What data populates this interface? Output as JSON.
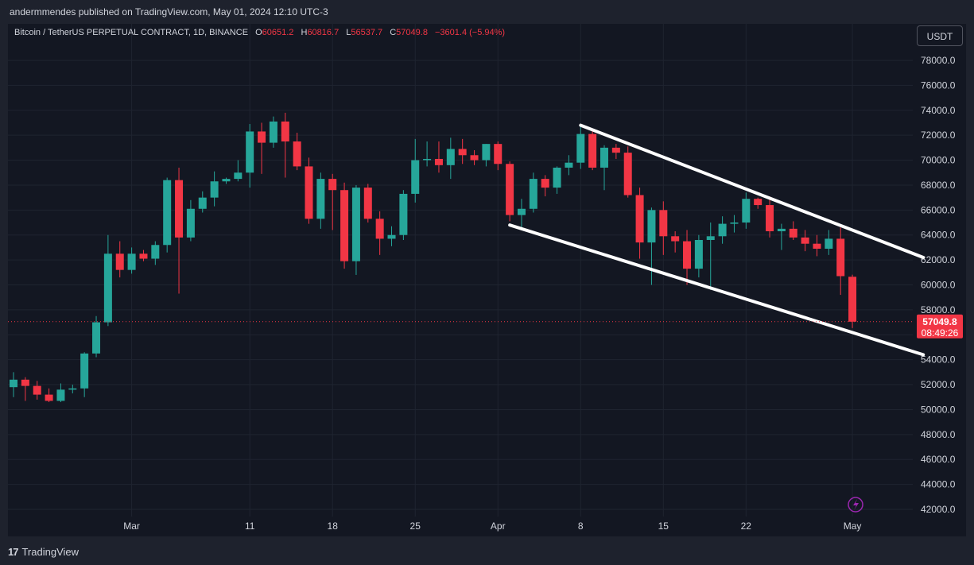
{
  "publish_line": "andermmendes published on TradingView.com, May 01, 2024 12:10 UTC-3",
  "legend": {
    "symbol": "Bitcoin / TetherUS PERPETUAL CONTRACT, 1D, BINANCE",
    "open_label": "O",
    "open": "60651.2",
    "high_label": "H",
    "high": "60816.7",
    "low_label": "L",
    "low": "56537.7",
    "close_label": "C",
    "close": "57049.8",
    "change": "−3601.4 (−5.94%)"
  },
  "currency_button": "USDT",
  "price_label": {
    "price": "57049.8",
    "countdown": "08:49:26"
  },
  "footer_brand": "TradingView",
  "icons": {
    "lightning": "lightning-icon",
    "logo": "tradingview-logo-icon"
  },
  "colors": {
    "up": "#26a69a",
    "down": "#f23645",
    "background": "#131722",
    "grid": "#1f2430",
    "trendline": "#ffffff"
  },
  "chart_data": {
    "type": "candlestick",
    "y_axis": {
      "ylim": [
        41000,
        80000
      ],
      "ticks": [
        "42000.0",
        "44000.0",
        "46000.0",
        "48000.0",
        "50000.0",
        "52000.0",
        "54000.0",
        "56000.0",
        "58000.0",
        "60000.0",
        "62000.0",
        "64000.0",
        "66000.0",
        "68000.0",
        "70000.0",
        "72000.0",
        "74000.0",
        "76000.0",
        "78000.0"
      ],
      "tick_values": [
        42000,
        44000,
        46000,
        48000,
        50000,
        52000,
        54000,
        56000,
        58000,
        60000,
        62000,
        64000,
        66000,
        68000,
        70000,
        72000,
        74000,
        76000,
        78000
      ]
    },
    "x_axis": {
      "first_date": "2024-02-20",
      "ticks": [
        {
          "label": "Mar",
          "date": "2024-03-01"
        },
        {
          "label": "11",
          "date": "2024-03-11"
        },
        {
          "label": "18",
          "date": "2024-03-18"
        },
        {
          "label": "25",
          "date": "2024-03-25"
        },
        {
          "label": "Apr",
          "date": "2024-04-01"
        },
        {
          "label": "8",
          "date": "2024-04-08"
        },
        {
          "label": "15",
          "date": "2024-04-15"
        },
        {
          "label": "22",
          "date": "2024-04-22"
        },
        {
          "label": "May",
          "date": "2024-05-01"
        }
      ]
    },
    "candles": [
      {
        "o": 51800,
        "h": 53000,
        "l": 51000,
        "c": 52400
      },
      {
        "o": 52400,
        "h": 52600,
        "l": 50700,
        "c": 51900
      },
      {
        "o": 51900,
        "h": 52300,
        "l": 50800,
        "c": 51200
      },
      {
        "o": 51200,
        "h": 51700,
        "l": 50600,
        "c": 50700
      },
      {
        "o": 50700,
        "h": 52100,
        "l": 50600,
        "c": 51600
      },
      {
        "o": 51600,
        "h": 52000,
        "l": 51300,
        "c": 51700
      },
      {
        "o": 51700,
        "h": 54600,
        "l": 51000,
        "c": 54500
      },
      {
        "o": 54500,
        "h": 57500,
        "l": 54200,
        "c": 57000
      },
      {
        "o": 57000,
        "h": 64000,
        "l": 56700,
        "c": 62500
      },
      {
        "o": 62500,
        "h": 63500,
        "l": 60600,
        "c": 61200
      },
      {
        "o": 61200,
        "h": 63000,
        "l": 60900,
        "c": 62500
      },
      {
        "o": 62500,
        "h": 62800,
        "l": 61900,
        "c": 62100
      },
      {
        "o": 62100,
        "h": 63500,
        "l": 61600,
        "c": 63200
      },
      {
        "o": 63200,
        "h": 68600,
        "l": 62600,
        "c": 68400
      },
      {
        "o": 68400,
        "h": 69400,
        "l": 59300,
        "c": 63800
      },
      {
        "o": 63800,
        "h": 66800,
        "l": 63500,
        "c": 66100
      },
      {
        "o": 66100,
        "h": 67500,
        "l": 65800,
        "c": 67000
      },
      {
        "o": 67000,
        "h": 69100,
        "l": 66300,
        "c": 68300
      },
      {
        "o": 68300,
        "h": 68600,
        "l": 68100,
        "c": 68500
      },
      {
        "o": 68500,
        "h": 70000,
        "l": 68300,
        "c": 69000
      },
      {
        "o": 69000,
        "h": 72900,
        "l": 67800,
        "c": 72300
      },
      {
        "o": 72300,
        "h": 73000,
        "l": 68900,
        "c": 71400
      },
      {
        "o": 71400,
        "h": 73500,
        "l": 71000,
        "c": 73100
      },
      {
        "o": 73100,
        "h": 73800,
        "l": 68600,
        "c": 71500
      },
      {
        "o": 71500,
        "h": 72200,
        "l": 69200,
        "c": 69500
      },
      {
        "o": 69500,
        "h": 70200,
        "l": 64900,
        "c": 65300
      },
      {
        "o": 65300,
        "h": 69000,
        "l": 64500,
        "c": 68500
      },
      {
        "o": 68500,
        "h": 68900,
        "l": 64400,
        "c": 67600
      },
      {
        "o": 67600,
        "h": 68200,
        "l": 61300,
        "c": 61900
      },
      {
        "o": 61900,
        "h": 68000,
        "l": 60800,
        "c": 67800
      },
      {
        "o": 67800,
        "h": 68100,
        "l": 65000,
        "c": 65300
      },
      {
        "o": 65300,
        "h": 65900,
        "l": 62400,
        "c": 63700
      },
      {
        "o": 63700,
        "h": 64700,
        "l": 63100,
        "c": 64000
      },
      {
        "o": 64000,
        "h": 67600,
        "l": 63600,
        "c": 67300
      },
      {
        "o": 67300,
        "h": 71700,
        "l": 66600,
        "c": 70000
      },
      {
        "o": 70000,
        "h": 71500,
        "l": 69500,
        "c": 70100
      },
      {
        "o": 70100,
        "h": 71500,
        "l": 69000,
        "c": 69600
      },
      {
        "o": 69600,
        "h": 71800,
        "l": 68500,
        "c": 70900
      },
      {
        "o": 70900,
        "h": 71700,
        "l": 69700,
        "c": 70400
      },
      {
        "o": 70400,
        "h": 70800,
        "l": 69600,
        "c": 70000
      },
      {
        "o": 70000,
        "h": 71300,
        "l": 69500,
        "c": 71300
      },
      {
        "o": 71300,
        "h": 71500,
        "l": 69200,
        "c": 69700
      },
      {
        "o": 69700,
        "h": 69900,
        "l": 65100,
        "c": 65600
      },
      {
        "o": 65600,
        "h": 66900,
        "l": 64500,
        "c": 66100
      },
      {
        "o": 66100,
        "h": 69000,
        "l": 65800,
        "c": 68500
      },
      {
        "o": 68500,
        "h": 68800,
        "l": 67100,
        "c": 67800
      },
      {
        "o": 67800,
        "h": 69500,
        "l": 67300,
        "c": 69400
      },
      {
        "o": 69400,
        "h": 70400,
        "l": 68800,
        "c": 69800
      },
      {
        "o": 69800,
        "h": 72700,
        "l": 69300,
        "c": 72100
      },
      {
        "o": 72100,
        "h": 72500,
        "l": 69200,
        "c": 69400
      },
      {
        "o": 69400,
        "h": 71200,
        "l": 67600,
        "c": 71000
      },
      {
        "o": 71000,
        "h": 71300,
        "l": 70100,
        "c": 70600
      },
      {
        "o": 70600,
        "h": 71100,
        "l": 67000,
        "c": 67200
      },
      {
        "o": 67200,
        "h": 67800,
        "l": 62100,
        "c": 63400
      },
      {
        "o": 63400,
        "h": 66200,
        "l": 60000,
        "c": 66000
      },
      {
        "o": 66000,
        "h": 66700,
        "l": 62400,
        "c": 63900
      },
      {
        "o": 63900,
        "h": 64300,
        "l": 62600,
        "c": 63500
      },
      {
        "o": 63500,
        "h": 64400,
        "l": 60000,
        "c": 61300
      },
      {
        "o": 61300,
        "h": 64000,
        "l": 60600,
        "c": 63600
      },
      {
        "o": 63600,
        "h": 65000,
        "l": 59600,
        "c": 63900
      },
      {
        "o": 63900,
        "h": 65500,
        "l": 63300,
        "c": 64900
      },
      {
        "o": 64900,
        "h": 65600,
        "l": 64200,
        "c": 65000
      },
      {
        "o": 65000,
        "h": 67400,
        "l": 64500,
        "c": 66900
      },
      {
        "o": 66900,
        "h": 67000,
        "l": 66100,
        "c": 66400
      },
      {
        "o": 66400,
        "h": 67100,
        "l": 63800,
        "c": 64300
      },
      {
        "o": 64300,
        "h": 64900,
        "l": 62800,
        "c": 64500
      },
      {
        "o": 64500,
        "h": 65100,
        "l": 63600,
        "c": 63800
      },
      {
        "o": 63800,
        "h": 64400,
        "l": 62700,
        "c": 63300
      },
      {
        "o": 63300,
        "h": 64000,
        "l": 62300,
        "c": 62900
      },
      {
        "o": 62900,
        "h": 64400,
        "l": 62400,
        "c": 63700
      },
      {
        "o": 63700,
        "h": 64600,
        "l": 59200,
        "c": 60700
      },
      {
        "o": 60651.2,
        "h": 60816.7,
        "l": 56537.7,
        "c": 57049.8
      }
    ],
    "current_price": 57049.8,
    "trendlines": [
      {
        "name": "upper",
        "from": {
          "date": "2024-04-08",
          "price": 72800
        },
        "to": {
          "date": "2024-05-07",
          "price": 62200
        }
      },
      {
        "name": "lower",
        "from": {
          "date": "2024-04-02",
          "price": 64800
        },
        "to": {
          "date": "2024-05-07",
          "price": 54400
        }
      }
    ],
    "grid": true
  }
}
